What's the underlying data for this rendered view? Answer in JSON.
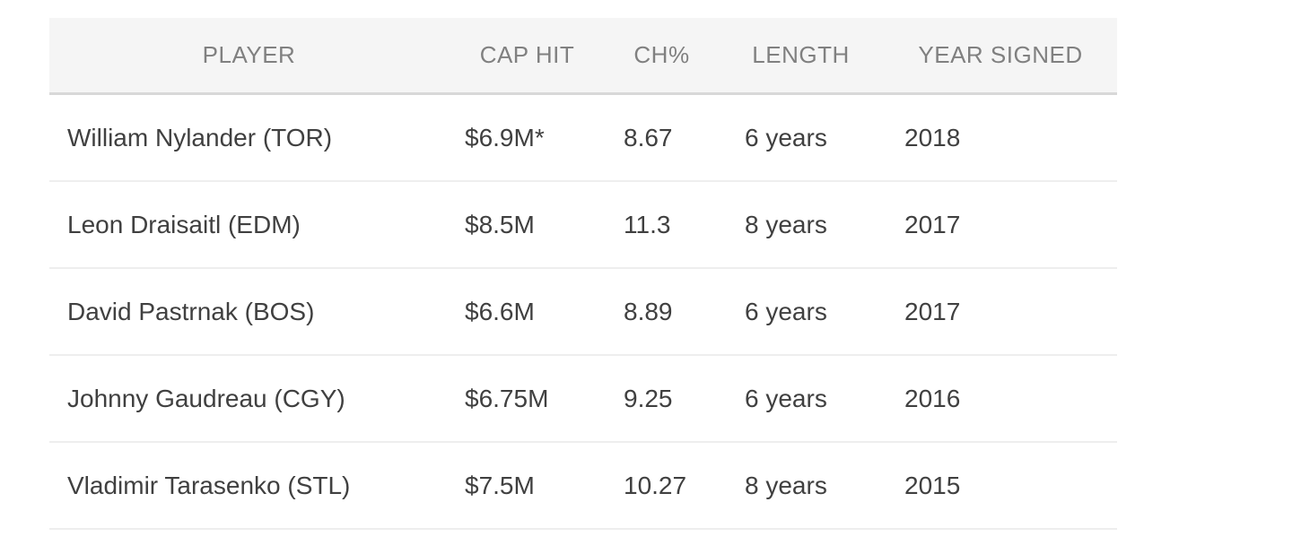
{
  "table": {
    "name": "comparable-contracts-table",
    "columns": {
      "player": "PLAYER",
      "cap_hit": "CAP HIT",
      "ch_pct": "CH%",
      "length": "LENGTH",
      "year_signed": "YEAR SIGNED"
    },
    "rows": [
      {
        "player": "William Nylander (TOR)",
        "cap_hit": "$6.9M*",
        "ch_pct": "8.67",
        "length": "6 years",
        "year_signed": "2018"
      },
      {
        "player": "Leon Draisaitl (EDM)",
        "cap_hit": "$8.5M",
        "ch_pct": "11.3",
        "length": "8 years",
        "year_signed": "2017"
      },
      {
        "player": "David Pastrnak (BOS)",
        "cap_hit": "$6.6M",
        "ch_pct": "8.89",
        "length": "6 years",
        "year_signed": "2017"
      },
      {
        "player": "Johnny Gaudreau (CGY)",
        "cap_hit": "$6.75M",
        "ch_pct": "9.25",
        "length": "6 years",
        "year_signed": "2016"
      },
      {
        "player": "Vladimir Tarasenko (STL)",
        "cap_hit": "$7.5M",
        "ch_pct": "10.27",
        "length": "8 years",
        "year_signed": "2015"
      }
    ]
  },
  "colors": {
    "header_background": "#f5f5f5",
    "header_text": "#808080",
    "header_border": "#d8d8d8",
    "row_separator": "#eeeeee",
    "body_text": "#404040",
    "page_background": "#ffffff"
  }
}
